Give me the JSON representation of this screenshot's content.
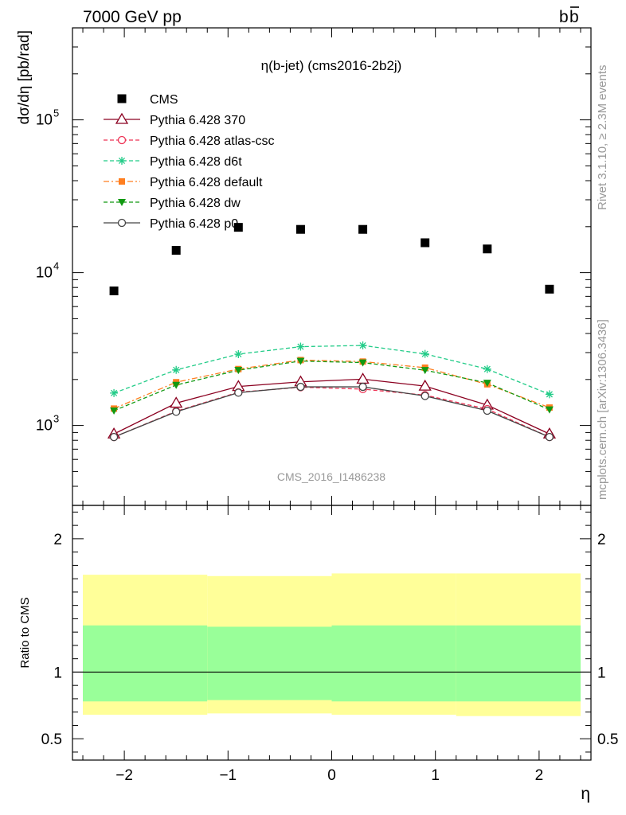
{
  "header": {
    "left": "7000 GeV pp",
    "right_main": "b",
    "right_bar": "b"
  },
  "side_labels": {
    "rivet": "Rivet 3.1.10, ≥ 2.3M events",
    "mcplots": "mcplots.cern.ch [arXiv:1306.3436]"
  },
  "watermark": "CMS_2016_I1486238",
  "colors": {
    "cms": "#000000",
    "p370": "#8b0020",
    "atlas": "#ee3355",
    "d6t": "#22cc88",
    "default": "#ff7f20",
    "dw": "#119911",
    "p0": "#444444",
    "band_outer": "#ffff99",
    "band_inner": "#99ff99"
  },
  "chart_data": [
    {
      "type": "scatter",
      "title": "η(b-jet) (cms2016-2b2j)",
      "xlabel": "η",
      "ylabel": "dσ/dη [pb/rad]",
      "yscale": "log",
      "xlim": [
        -2.5,
        2.5
      ],
      "ylim": [
        300,
        400000
      ],
      "x": [
        -2.1,
        -1.5,
        -0.9,
        -0.3,
        0.3,
        0.9,
        1.5,
        2.1
      ],
      "y_ticks": [
        "10^3",
        "10^4",
        "10^5"
      ],
      "x_ticks": [
        "−2",
        "−1",
        "0",
        "1",
        "2"
      ],
      "legend_position": "top-left",
      "series": [
        {
          "name": "CMS",
          "key": "cms",
          "marker": "square",
          "line": "none",
          "values": [
            7600,
            14000,
            19800,
            19200,
            19200,
            15700,
            14300,
            7800
          ]
        },
        {
          "name": "Pythia 6.428 370",
          "key": "p370",
          "marker": "triangle-open",
          "line": "solid",
          "values": [
            880,
            1400,
            1800,
            1930,
            2010,
            1810,
            1360,
            880
          ]
        },
        {
          "name": "Pythia 6.428 atlas-csc",
          "key": "atlas",
          "marker": "circle-open",
          "line": "dashed",
          "values": [
            840,
            1240,
            1650,
            1780,
            1730,
            1580,
            1280,
            840
          ]
        },
        {
          "name": "Pythia 6.428 d6t",
          "key": "d6t",
          "marker": "star",
          "line": "dashed",
          "values": [
            1630,
            2310,
            2930,
            3280,
            3340,
            2940,
            2340,
            1600
          ]
        },
        {
          "name": "Pythia 6.428 default",
          "key": "default",
          "marker": "square-small",
          "line": "dashdot",
          "values": [
            1290,
            1920,
            2340,
            2680,
            2620,
            2390,
            1860,
            1310
          ]
        },
        {
          "name": "Pythia 6.428 dw",
          "key": "dw",
          "marker": "triangle-down",
          "line": "dashed",
          "values": [
            1250,
            1840,
            2300,
            2640,
            2580,
            2300,
            1900,
            1270
          ]
        },
        {
          "name": "Pythia 6.428 p0",
          "key": "p0",
          "marker": "circle-open",
          "line": "solid",
          "values": [
            840,
            1230,
            1640,
            1790,
            1790,
            1560,
            1250,
            840
          ]
        }
      ]
    },
    {
      "type": "area",
      "xlabel": "η",
      "ylabel": "Ratio to CMS",
      "xlim": [
        -2.5,
        2.5
      ],
      "ylim": [
        0.34,
        2.25
      ],
      "y_ticks": [
        "0.5",
        "1",
        "2"
      ],
      "x_ticks": [
        "−2",
        "−1",
        "0",
        "1",
        "2"
      ],
      "reference": 1,
      "bins": [
        [
          -2.4,
          -1.2
        ],
        [
          -1.2,
          0.0
        ],
        [
          0.0,
          1.2
        ],
        [
          1.2,
          2.4
        ]
      ],
      "band_outer": {
        "low": [
          0.68,
          0.69,
          0.68,
          0.67
        ],
        "high": [
          1.73,
          1.72,
          1.74,
          1.74
        ]
      },
      "band_inner": {
        "low": [
          0.78,
          0.79,
          0.78,
          0.78
        ],
        "high": [
          1.35,
          1.34,
          1.35,
          1.35
        ]
      }
    }
  ]
}
